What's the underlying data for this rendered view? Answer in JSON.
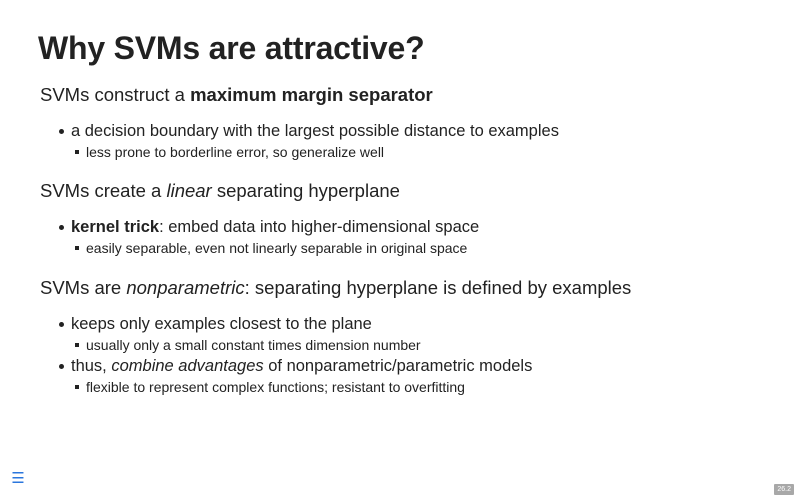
{
  "slide": {
    "title": "Why SVMs are attractive?",
    "number": "26.2"
  },
  "nav": {
    "menu_icon": "menu-icon"
  },
  "sections": [
    {
      "heading": {
        "pre": "SVMs construct a ",
        "bold": "maximum margin separator"
      },
      "items": [
        {
          "text": "a decision boundary with the largest possible distance to examples",
          "subitems": [
            "less prone to borderline error, so generalize well"
          ]
        }
      ]
    },
    {
      "heading": {
        "pre": "SVMs create a ",
        "italic": "linear",
        "post": " separating hyperplane"
      },
      "items": [
        {
          "bold": "kernel trick",
          "text": ": embed data into higher-dimensional space",
          "subitems": [
            "easily separable, even not linearly separable in original space"
          ]
        }
      ]
    },
    {
      "heading": {
        "pre": "SVMs are ",
        "italic": "nonparametric",
        "post": ": separating hyperplane is defined by examples"
      },
      "items": [
        {
          "text": "keeps only examples closest to the plane",
          "subitems": [
            "usually only a small constant times dimension number"
          ]
        },
        {
          "pre": "thus, ",
          "italic": "combine advantages",
          "post": " of nonparametric/parametric models",
          "subitems": [
            "flexible to represent complex functions; resistant to overfitting"
          ]
        }
      ]
    }
  ]
}
